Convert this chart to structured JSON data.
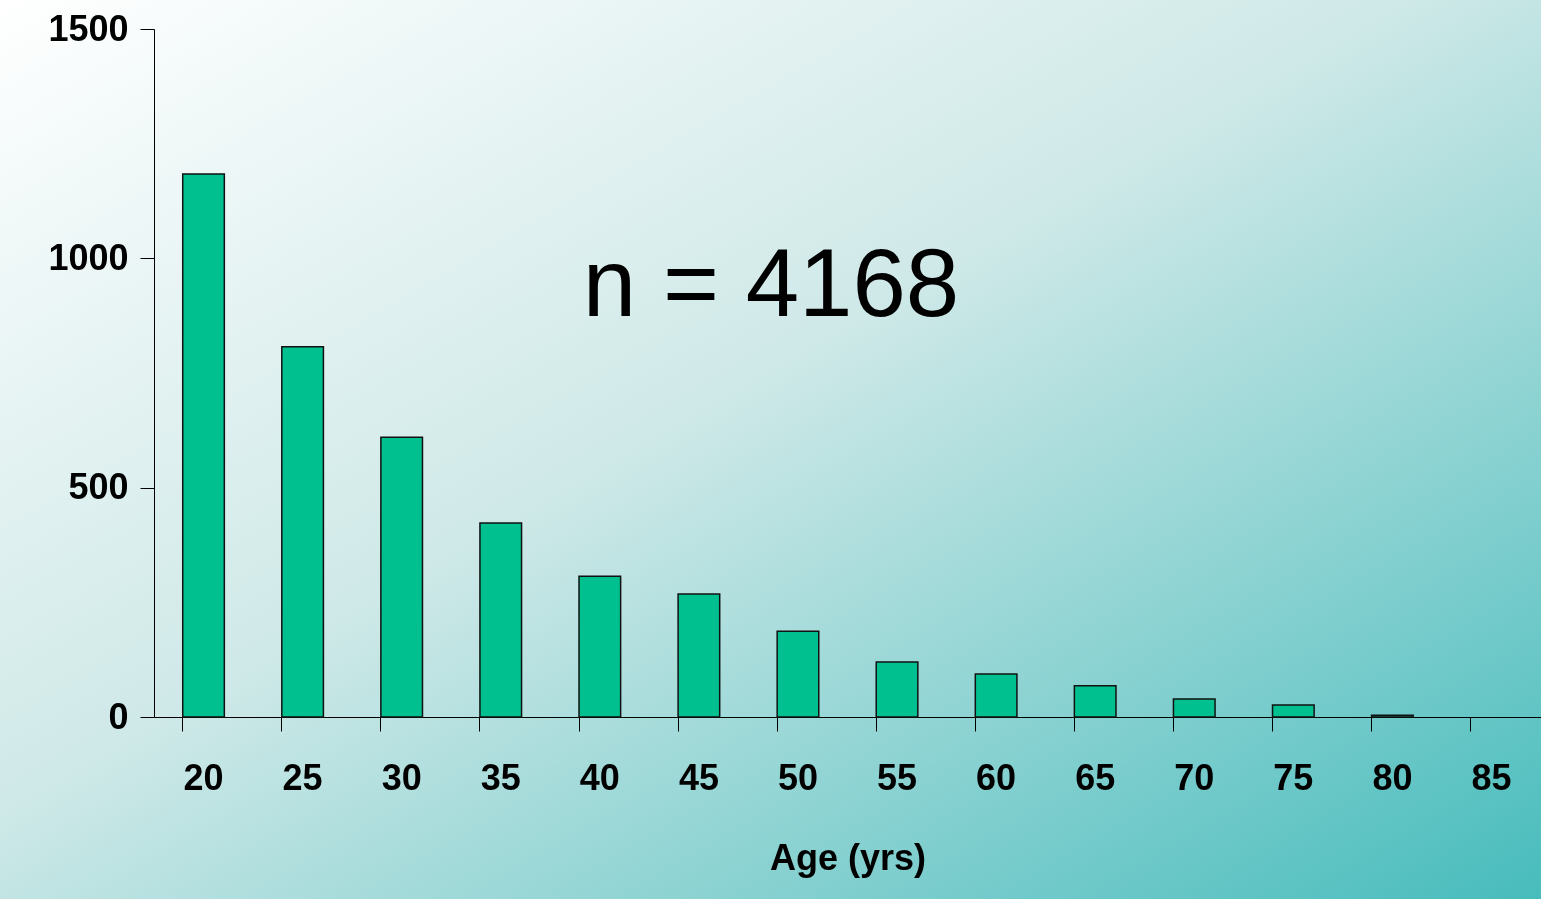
{
  "chart_data": {
    "type": "bar",
    "xlabel": "Age (yrs)",
    "categories": [
      "20",
      "25",
      "30",
      "35",
      "40",
      "45",
      "50",
      "55",
      "60",
      "65",
      "70",
      "75",
      "80",
      "85"
    ],
    "values": [
      1184,
      807,
      610,
      423,
      307,
      268,
      187,
      120,
      94,
      68,
      39,
      26,
      4,
      null
    ],
    "color": "#00c090",
    "ylim": [
      0,
      1500
    ],
    "yticks": [
      0,
      500,
      1000,
      1500
    ],
    "grid": false,
    "annotations": [
      "n = 4168"
    ]
  }
}
